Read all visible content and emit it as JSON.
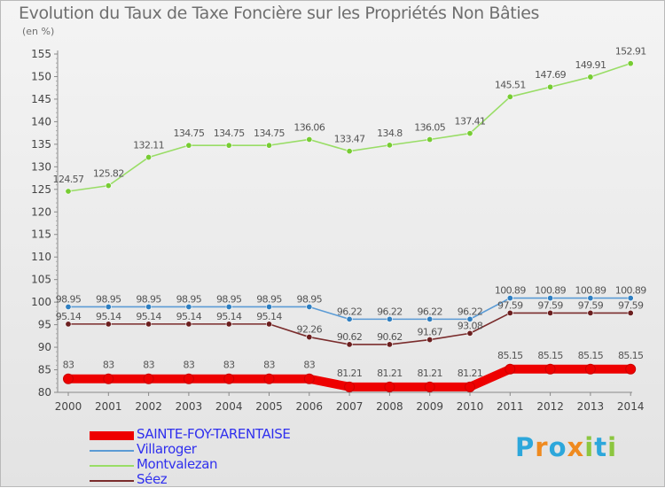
{
  "title": "Evolution du Taux de Taxe Foncière sur les Propriétés Non Bâties",
  "unit_label": "(en %)",
  "logo": {
    "text": "Proxiti",
    "letter_colors": [
      "#2da7db",
      "#ef8a1f",
      "#2da7db",
      "#ef8a1f",
      "#8cc63f",
      "#2da7db",
      "#8cc63f"
    ]
  },
  "chart_data": {
    "type": "line",
    "categories": [
      "2000",
      "2001",
      "2002",
      "2003",
      "2004",
      "2005",
      "2006",
      "2007",
      "2008",
      "2009",
      "2010",
      "2011",
      "2012",
      "2013",
      "2014"
    ],
    "ylim": [
      80,
      155
    ],
    "yticks": [
      80,
      85,
      90,
      95,
      100,
      105,
      110,
      115,
      120,
      125,
      130,
      135,
      140,
      145,
      150,
      155
    ],
    "grid": false,
    "legend_position": "bottom-left",
    "series": [
      {
        "name": "SAINTE-FOY-TARENTAISE",
        "color": "#ee0000",
        "marker_color": "#ee0000",
        "values": [
          83,
          83,
          83,
          83,
          83,
          83,
          83,
          81.21,
          81.21,
          81.21,
          81.21,
          85.15,
          85.15,
          85.15,
          85.15
        ],
        "labels": [
          "83",
          "83",
          "83",
          "83",
          "83",
          "83",
          "83",
          "81.21",
          "81.21",
          "81.21",
          "81.21",
          "85.15",
          "85.15",
          "85.15",
          "85.15"
        ]
      },
      {
        "name": "Villaroger",
        "color": "#5b9bd5",
        "marker_color": "#2f7fc1",
        "values": [
          98.95,
          98.95,
          98.95,
          98.95,
          98.95,
          98.95,
          98.95,
          96.22,
          96.22,
          96.22,
          96.22,
          100.89,
          100.89,
          100.89,
          100.89
        ],
        "labels": [
          "98.95",
          "98.95",
          "98.95",
          "98.95",
          "98.95",
          "98.95",
          "98.95",
          "96.22",
          "96.22",
          "96.22",
          "96.22",
          "100.89",
          "100.89",
          "100.89",
          "100.89"
        ]
      },
      {
        "name": "Montvalezan",
        "color": "#99dd66",
        "marker_color": "#77cc33",
        "values": [
          124.57,
          125.82,
          132.11,
          134.75,
          134.75,
          134.75,
          136.06,
          133.47,
          134.8,
          136.05,
          137.41,
          145.51,
          147.69,
          149.91,
          152.91
        ],
        "labels": [
          "124.57",
          "125.82",
          "132.11",
          "134.75",
          "134.75",
          "134.75",
          "136.06",
          "133.47",
          "134.8",
          "136.05",
          "137.41",
          "145.51",
          "147.69",
          "149.91",
          "152.91"
        ]
      },
      {
        "name": "Séez",
        "color": "#7a2c2c",
        "marker_color": "#6b1f1f",
        "values": [
          95.14,
          95.14,
          95.14,
          95.14,
          95.14,
          95.14,
          92.26,
          90.62,
          90.62,
          91.67,
          93.08,
          97.59,
          97.59,
          97.59,
          97.59
        ],
        "labels": [
          "95.14",
          "95.14",
          "95.14",
          "95.14",
          "95.14",
          "95.14",
          "92.26",
          "90.62",
          "90.62",
          "91.67",
          "93.08",
          "97.59",
          "97.59",
          "97.59",
          "97.59"
        ]
      }
    ]
  }
}
